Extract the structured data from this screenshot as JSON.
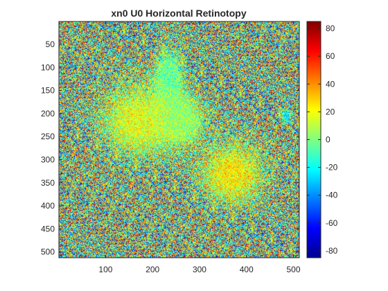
{
  "chart_data": {
    "type": "heatmap",
    "title": "xn0 U0 Horizontal Retinotopy",
    "xlabel": "",
    "ylabel": "",
    "xlim": [
      0.5,
      512.5
    ],
    "ylim": [
      0.5,
      512.5
    ],
    "y_reversed": true,
    "x_ticks": [
      100,
      200,
      300,
      400,
      500
    ],
    "y_ticks": [
      50,
      100,
      150,
      200,
      250,
      300,
      350,
      400,
      450,
      500
    ],
    "colorbar": {
      "colormap": "jet",
      "range": [
        -85,
        85
      ],
      "ticks": [
        80,
        60,
        40,
        20,
        0,
        -20,
        -40,
        -60,
        -80
      ]
    },
    "grid": false,
    "features": [
      {
        "name": "cool band",
        "x": 235,
        "y": 120,
        "value": -30,
        "spread_x": 28,
        "spread_y": 55
      },
      {
        "name": "cool band lower",
        "x": 260,
        "y": 215,
        "value": -10,
        "spread_x": 45,
        "spread_y": 50
      },
      {
        "name": "warm region",
        "x": 170,
        "y": 215,
        "value": 25,
        "spread_x": 70,
        "spread_y": 70
      },
      {
        "name": "warm lower right",
        "x": 370,
        "y": 330,
        "value": 40,
        "spread_x": 60,
        "spread_y": 60
      },
      {
        "name": "vessel",
        "x": 485,
        "y": 205,
        "value": -70,
        "spread_x": 10,
        "spread_y": 15
      }
    ]
  }
}
